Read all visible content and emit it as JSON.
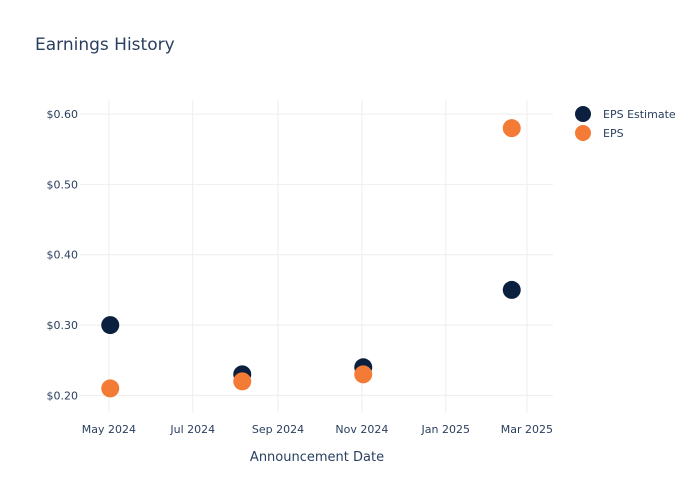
{
  "chart_data": {
    "type": "scatter",
    "title": "Earnings History",
    "xlabel": "Announcement Date",
    "ylabel": "",
    "x_ticks": [
      "May 2024",
      "Jul 2024",
      "Sep 2024",
      "Nov 2024",
      "Jan 2025",
      "Mar 2025"
    ],
    "x_tick_dates": [
      "2024-05-01",
      "2024-07-01",
      "2024-09-01",
      "2024-11-01",
      "2025-01-01",
      "2025-03-01"
    ],
    "y_ticks": [
      "$0.20",
      "$0.30",
      "$0.40",
      "$0.50",
      "$0.60"
    ],
    "y_tick_values": [
      0.2,
      0.3,
      0.4,
      0.5,
      0.6
    ],
    "xlim": [
      "2024-04-10",
      "2025-03-20"
    ],
    "ylim": [
      0.175,
      0.62
    ],
    "grid": true,
    "legend_position": "top-right",
    "series": [
      {
        "name": "EPS Estimate",
        "color": "#0b1f3f",
        "x": [
          "2024-05-02",
          "2024-08-06",
          "2024-11-02",
          "2025-02-18"
        ],
        "y": [
          0.3,
          0.23,
          0.24,
          0.35
        ]
      },
      {
        "name": "EPS",
        "color": "#f47b36",
        "x": [
          "2024-05-02",
          "2024-08-06",
          "2024-11-02",
          "2025-02-18"
        ],
        "y": [
          0.21,
          0.22,
          0.23,
          0.58
        ]
      }
    ]
  }
}
